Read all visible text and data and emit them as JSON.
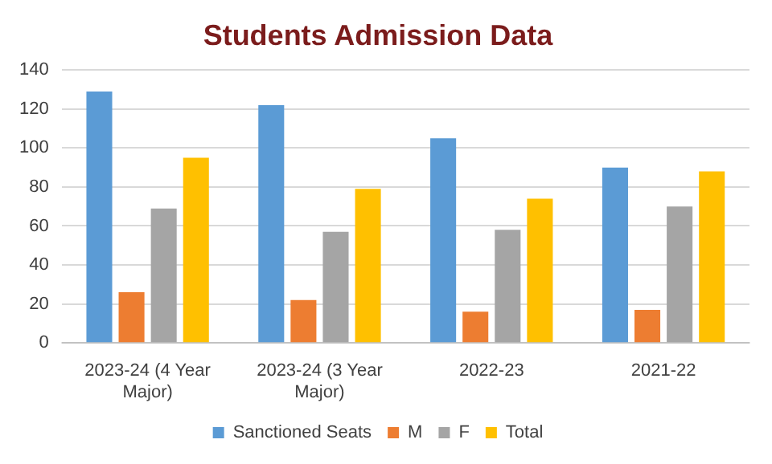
{
  "chart_data": {
    "type": "bar",
    "title": "Students Admission Data",
    "categories": [
      "2023-24 (4 Year Major)",
      "2023-24 (3 Year Major)",
      "2022-23",
      "2021-22"
    ],
    "series": [
      {
        "name": "Sanctioned Seats",
        "color": "#5b9bd5",
        "values": [
          129,
          122,
          105,
          90
        ]
      },
      {
        "name": "M",
        "color": "#ed7d31",
        "values": [
          26,
          22,
          16,
          17
        ]
      },
      {
        "name": "F",
        "color": "#a5a5a5",
        "values": [
          69,
          57,
          58,
          70
        ]
      },
      {
        "name": "Total",
        "color": "#ffc000",
        "values": [
          95,
          79,
          74,
          88
        ]
      }
    ],
    "ylim": [
      0,
      140
    ],
    "yticks": [
      0,
      20,
      40,
      60,
      80,
      100,
      120,
      140
    ],
    "grid": "y",
    "legend": "bottom"
  }
}
